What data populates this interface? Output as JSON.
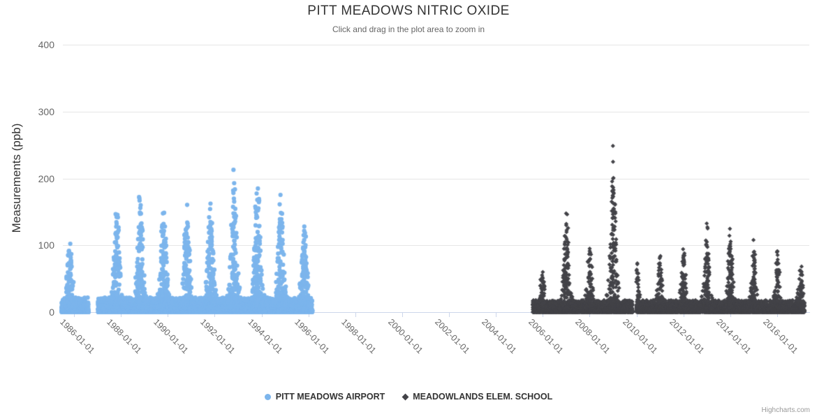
{
  "chart_data": {
    "type": "scatter",
    "title": "PITT MEADOWS NITRIC OXIDE",
    "subtitle": "Click and drag in the plot area to zoom in",
    "ylabel": "Measurements (ppb)",
    "ylim": [
      0,
      400
    ],
    "yticks": [
      0,
      100,
      200,
      300,
      400
    ],
    "xtick_labels": [
      "1986-01-01",
      "1988-01-01",
      "1990-01-01",
      "1992-01-01",
      "1994-01-01",
      "1996-01-01",
      "1998-01-01",
      "2000-01-01",
      "2002-01-01",
      "2004-01-01",
      "2006-01-01",
      "2008-01-01",
      "2010-01-01",
      "2012-01-01",
      "2014-01-01",
      "2016-01-01"
    ],
    "x_domain_years": [
      1985.5,
      2017.3
    ],
    "grid": true,
    "legend_position": "bottom-center",
    "credit": "Highcharts.com",
    "colors": {
      "title": "#333333",
      "subtitle": "#666666",
      "axis_label": "#666666",
      "axis_title": "#333333",
      "grid_line": "#e6e6e6",
      "axis_line": "#ccd6eb",
      "legend_text": "#333333",
      "credit_text": "#999999"
    },
    "series": [
      {
        "name": "PITT MEADOWS AIRPORT",
        "color": "#7cb5ec",
        "marker": "circle",
        "coverage_years": [
          1985.47,
          1996.17
        ],
        "data_gaps_years": [
          [
            1986.62,
            1987.02
          ]
        ],
        "baseline_max_ppb": 22,
        "winter_center_offset": 0.82,
        "spike_sigma_years": 0.1,
        "winter_peaks_ppb": {
          "1985": 88,
          "1987": 132,
          "1988": 147,
          "1989": 132,
          "1990": 126,
          "1991": 135,
          "1992": 170,
          "1993": 168,
          "1994": 138,
          "1995": 108
        }
      },
      {
        "name": "MEADOWLANDS ELEM. SCHOOL",
        "color": "#434348",
        "marker": "diamond",
        "coverage_years": [
          2005.57,
          2017.17
        ],
        "data_gaps_years": [
          [
            2009.84,
            2009.99
          ]
        ],
        "baseline_max_ppb": 18,
        "winter_center_offset": 1.0,
        "spike_sigma_years": 0.085,
        "winter_peaks_ppb": {
          "2005": 60,
          "2006": 130,
          "2007": 95,
          "2008": 200,
          "2009": 62,
          "2010": 70,
          "2011": 80,
          "2012": 105,
          "2013": 102,
          "2014": 85,
          "2015": 75,
          "2016": 62
        }
      }
    ]
  }
}
